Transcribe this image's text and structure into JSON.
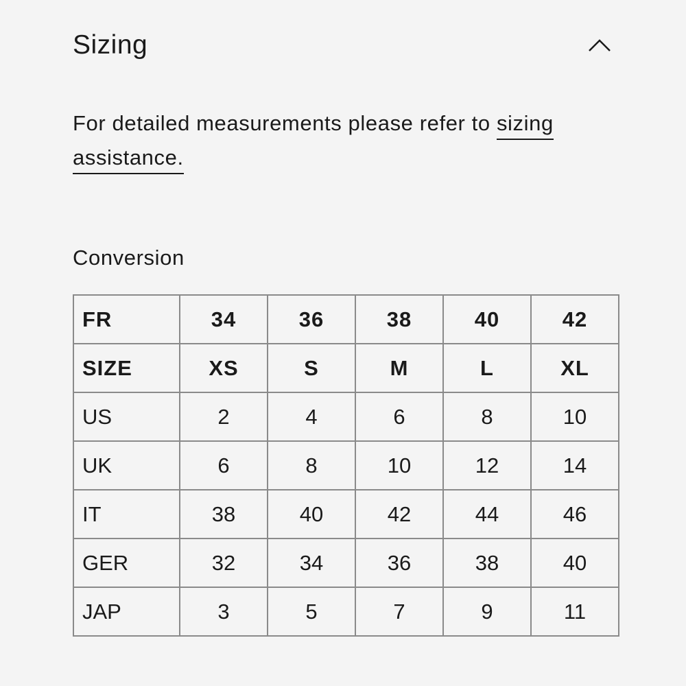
{
  "section": {
    "title": "Sizing",
    "toggle_icon": "chevron-up-icon"
  },
  "description": {
    "text": "For detailed measurements please refer to ",
    "link": "sizing assistance."
  },
  "conversion": {
    "heading": "Conversion",
    "rows": [
      {
        "label": "FR",
        "values": [
          "34",
          "36",
          "38",
          "40",
          "42"
        ],
        "bold": true
      },
      {
        "label": "SIZE",
        "values": [
          "XS",
          "S",
          "M",
          "L",
          "XL"
        ],
        "bold": true
      },
      {
        "label": "US",
        "values": [
          "2",
          "4",
          "6",
          "8",
          "10"
        ]
      },
      {
        "label": "UK",
        "values": [
          "6",
          "8",
          "10",
          "12",
          "14"
        ]
      },
      {
        "label": "IT",
        "values": [
          "38",
          "40",
          "42",
          "44",
          "46"
        ]
      },
      {
        "label": "GER",
        "values": [
          "32",
          "34",
          "36",
          "38",
          "40"
        ]
      },
      {
        "label": "JAP",
        "values": [
          "3",
          "5",
          "7",
          "9",
          "11"
        ]
      }
    ]
  }
}
